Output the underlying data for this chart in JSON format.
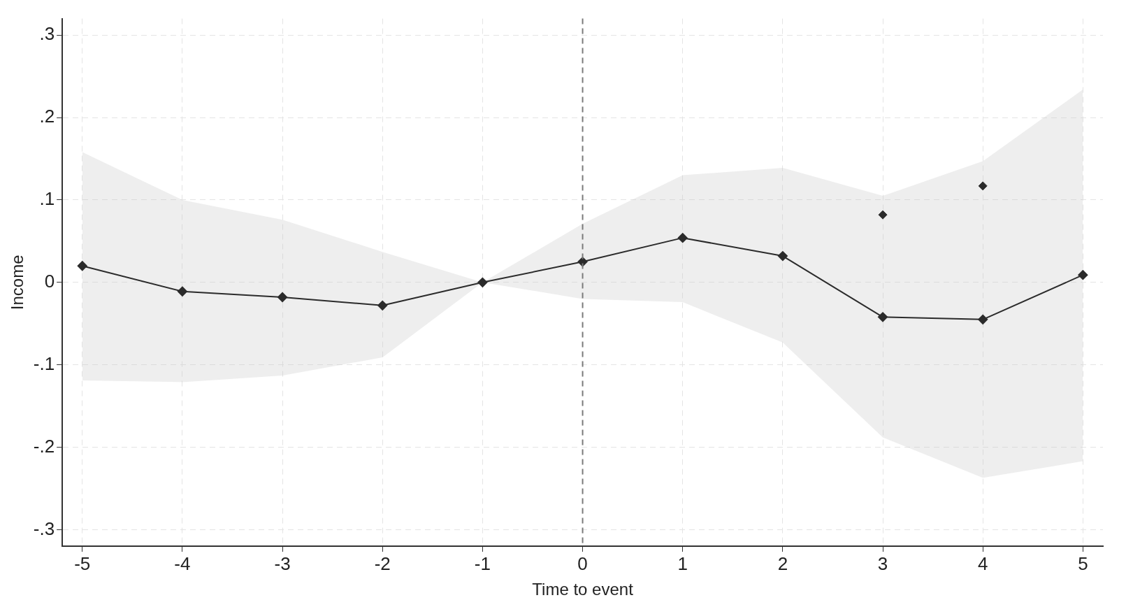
{
  "chart_data": {
    "type": "line",
    "xlabel": "Time to event",
    "ylabel": "Income",
    "x": [
      -5,
      -4,
      -3,
      -2,
      -1,
      0,
      1,
      2,
      3,
      4,
      5
    ],
    "series": [
      {
        "color": "#2b2b2b",
        "marker": "diamond",
        "values": [
          0.02,
          -0.011,
          -0.018,
          -0.028,
          0,
          0.025,
          0.054,
          0.032,
          -0.042,
          -0.045,
          0.009
        ],
        "lower": [
          -0.119,
          -0.121,
          -0.113,
          -0.091,
          0,
          -0.02,
          -0.024,
          -0.073,
          -0.188,
          -0.237,
          -0.217
        ],
        "upper": [
          0.158,
          0.1,
          0.076,
          0.037,
          0,
          0.071,
          0.13,
          0.139,
          0.105,
          0.147,
          0.234
        ]
      },
      {
        "type": "scatter",
        "color": "#2b2b2b",
        "marker": "diamond",
        "x": [
          3,
          4
        ],
        "values": [
          0.082,
          0.117
        ]
      }
    ],
    "xlim": [
      -5.2,
      5.2
    ],
    "xticks": [
      -5,
      -4,
      -3,
      -2,
      -1,
      0,
      1,
      2,
      3,
      4,
      5
    ],
    "ylim": [
      -0.32,
      0.32
    ],
    "yticks": [
      {
        "value": -0.3,
        "label": "-.3"
      },
      {
        "value": -0.2,
        "label": "-.2"
      },
      {
        "value": -0.1,
        "label": "-.1"
      },
      0,
      {
        "value": 0.1,
        "label": ".1"
      },
      {
        "value": 0.2,
        "label": ".2"
      },
      {
        "value": 0.3,
        "label": ".3"
      }
    ],
    "grid": true,
    "legend": false,
    "ref_lines": [
      {
        "axis": "x",
        "value": 0,
        "color": "#7a7a7a",
        "line_style": "dashed"
      }
    ]
  }
}
